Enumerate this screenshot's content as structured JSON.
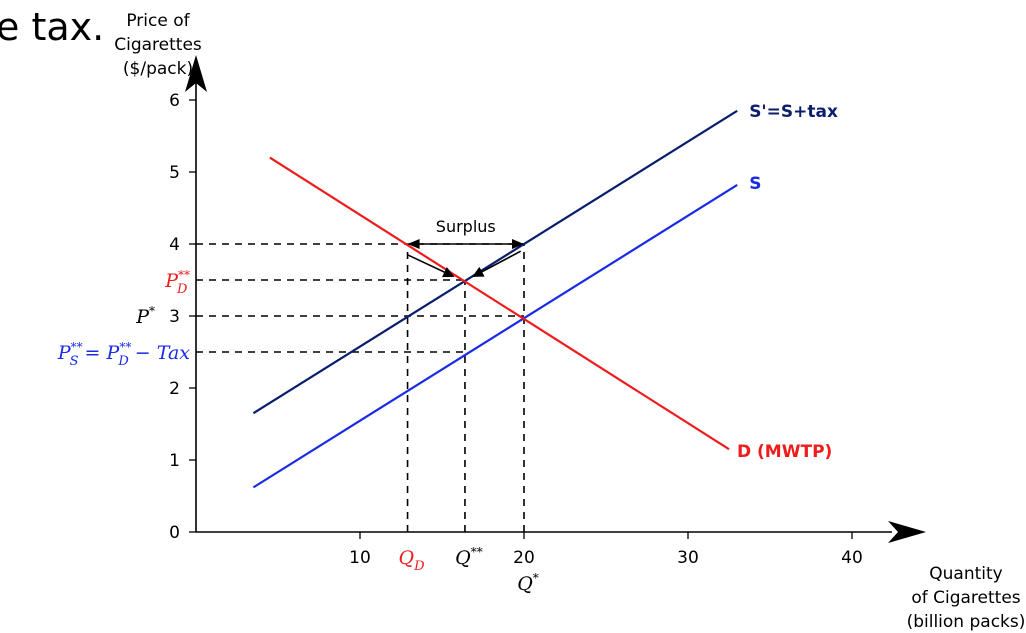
{
  "header_fragment": "e tax.",
  "chart_data": {
    "type": "line",
    "title": "",
    "ylabel": [
      "Price of",
      "Cigarettes",
      "($/pack)"
    ],
    "xlabel": [
      "Quantity",
      "of Cigarettes",
      "(billion packs)"
    ],
    "xlim": [
      0,
      42
    ],
    "ylim": [
      0,
      6.3
    ],
    "x_ticks": [
      10,
      20,
      30,
      40
    ],
    "y_ticks": [
      0,
      1,
      2,
      3,
      4,
      5,
      6
    ],
    "grid": false,
    "colors": {
      "supply_tax": "#0b1e6e",
      "supply": "#1a2be6",
      "demand": "#ee1c1c",
      "guide": "#000000",
      "axis": "#000000"
    },
    "series": [
      {
        "name": "S'=S+tax",
        "color": "#0b1e6e",
        "points": [
          [
            3.5,
            1.65
          ],
          [
            33,
            5.85
          ]
        ]
      },
      {
        "name": "S",
        "color": "#1a2be6",
        "points": [
          [
            3.5,
            0.62
          ],
          [
            33,
            4.82
          ]
        ]
      },
      {
        "name": "D (MWTP)",
        "color": "#ee1c1c",
        "points": [
          [
            4.5,
            5.2
          ],
          [
            32.5,
            1.15
          ]
        ]
      }
    ],
    "reference_lines": [
      {
        "y": 4.0,
        "x_from": 0,
        "x_to": 20
      },
      {
        "y": 3.5,
        "x_from": 0,
        "x_to": 16.4
      },
      {
        "y": 3.0,
        "x_from": 0,
        "x_to": 20
      },
      {
        "y": 2.5,
        "x_from": 0,
        "x_to": 16.4
      },
      {
        "x": 12.9,
        "y_from": 0,
        "y_to": 4.0
      },
      {
        "x": 16.4,
        "y_from": 0,
        "y_to": 3.5
      },
      {
        "x": 20.0,
        "y_from": 0,
        "y_to": 4.0
      }
    ],
    "surplus": {
      "label": "Surplus",
      "x_from": 12.9,
      "x_to": 20.0,
      "y": 4.0
    },
    "surplus_arrows": [
      {
        "from": [
          12.9,
          3.85
        ],
        "to": [
          15.7,
          3.55
        ]
      },
      {
        "from": [
          19.8,
          3.9
        ],
        "to": [
          16.9,
          3.55
        ]
      }
    ],
    "price_labels": [
      {
        "name": "p-d-star-star",
        "text": "P_D^**",
        "y": 3.5,
        "color": "#ee1c1c"
      },
      {
        "name": "p-star",
        "text": "P^*",
        "y": 3.0,
        "color": "#000000"
      },
      {
        "name": "p-s-star-star",
        "text": "P_S^** = P_D^** − Tax",
        "y": 2.5,
        "color": "#1a2be6"
      }
    ],
    "quantity_labels": [
      {
        "name": "q-d",
        "text": "Q_D",
        "x": 12.9,
        "color": "#ee1c1c"
      },
      {
        "name": "q-star-star",
        "text": "Q^**",
        "x": 16.4,
        "color": "#000000"
      },
      {
        "name": "q-star",
        "text": "Q^*",
        "x": 20.0,
        "color": "#000000"
      }
    ]
  }
}
